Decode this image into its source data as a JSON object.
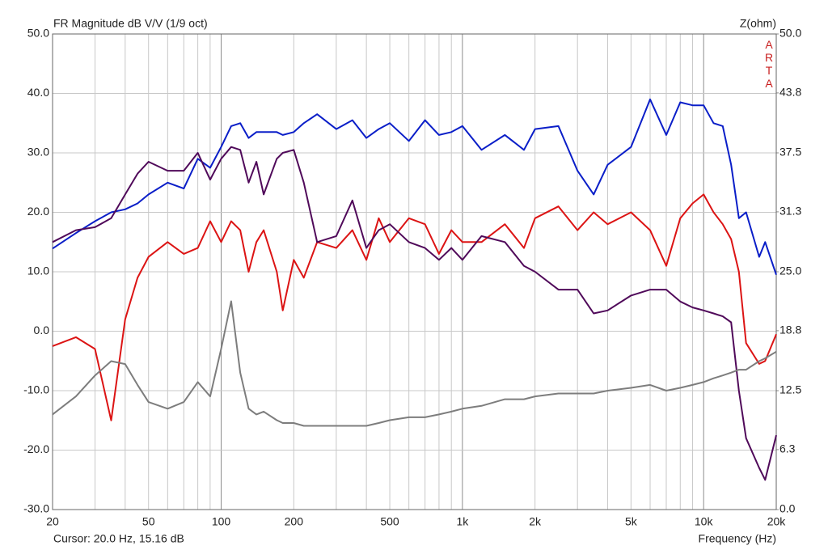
{
  "chart_data": {
    "type": "line",
    "title": "FR Magnitude dB V/V (1/9 oct)",
    "y2_label": "Z(ohm)",
    "brand": "ARTA",
    "cursor": "Cursor: 20.0 Hz, 15.16 dB",
    "x_label": "Frequency (Hz)",
    "x_log": true,
    "grid": true,
    "xlim": [
      20,
      20000
    ],
    "xticks": [
      20,
      50,
      100,
      200,
      500,
      {
        "value": 1000,
        "label": "1k"
      },
      {
        "value": 2000,
        "label": "2k"
      },
      {
        "value": 5000,
        "label": "5k"
      },
      {
        "value": 10000,
        "label": "10k"
      },
      {
        "value": 20000,
        "label": "20k"
      }
    ],
    "xgrid": [
      30,
      40,
      60,
      70,
      80,
      90,
      300,
      400,
      600,
      700,
      800,
      900,
      3000,
      4000,
      6000,
      7000,
      8000,
      9000
    ],
    "ylim": [
      -30,
      50
    ],
    "yticks": [
      {
        "value": 50,
        "label": "50.0"
      },
      {
        "value": 40,
        "label": "40.0"
      },
      {
        "value": 30,
        "label": "30.0"
      },
      {
        "value": 20,
        "label": "20.0"
      },
      {
        "value": 10,
        "label": "10.0"
      },
      {
        "value": 0,
        "label": "0.0"
      },
      {
        "value": -10,
        "label": "-10.0"
      },
      {
        "value": -20,
        "label": "-20.0"
      },
      {
        "value": -30,
        "label": "-30.0"
      }
    ],
    "y2lim": [
      0,
      50
    ],
    "y2ticks": [
      {
        "value": 50,
        "label": "50.0"
      },
      {
        "value": 43.8,
        "label": "43.8"
      },
      {
        "value": 37.5,
        "label": "37.5"
      },
      {
        "value": 31.3,
        "label": "31.3"
      },
      {
        "value": 25,
        "label": "25.0"
      },
      {
        "value": 18.8,
        "label": "18.8"
      },
      {
        "value": 12.5,
        "label": "12.5"
      },
      {
        "value": 6.3,
        "label": "6.3"
      },
      {
        "value": 0,
        "label": "0.0"
      }
    ],
    "x": [
      20,
      25,
      30,
      35,
      40,
      45,
      50,
      60,
      70,
      80,
      90,
      100,
      110,
      120,
      130,
      140,
      150,
      170,
      180,
      200,
      220,
      250,
      300,
      350,
      400,
      450,
      500,
      600,
      700,
      800,
      900,
      1000,
      1200,
      1500,
      1800,
      2000,
      2500,
      3000,
      3500,
      4000,
      5000,
      6000,
      7000,
      8000,
      9000,
      10000,
      11000,
      12000,
      13000,
      14000,
      15000,
      17000,
      18000,
      20000
    ],
    "series": [
      {
        "color": "#0a1ec8",
        "values": [
          13.9,
          16.5,
          18.5,
          20,
          20.5,
          21.5,
          23,
          25,
          24,
          29,
          27.5,
          31,
          34.5,
          35,
          32.5,
          33.5,
          33.5,
          33.5,
          33,
          33.5,
          35,
          36.5,
          34,
          35.5,
          32.5,
          34,
          35,
          32,
          35.5,
          33,
          33.5,
          34.5,
          30.5,
          33,
          30.5,
          34,
          34.5,
          27,
          23,
          28,
          31,
          39,
          33,
          38.5,
          38,
          38,
          35,
          34.5,
          28,
          19,
          20,
          12.5,
          15,
          9.5
        ]
      },
      {
        "color": "#dc1414",
        "values": [
          -2.5,
          -1,
          -3,
          -15,
          2,
          9,
          12.5,
          15,
          13,
          14,
          18.5,
          15,
          18.5,
          17,
          10,
          15,
          17,
          10,
          3.5,
          12,
          9,
          15,
          14,
          17,
          12,
          19,
          15,
          19,
          18,
          13,
          17,
          15,
          15,
          18,
          14,
          19,
          21,
          17,
          20,
          18,
          20,
          17,
          11,
          19,
          21.5,
          23,
          20,
          18,
          15.5,
          10,
          -2,
          -5.5,
          -5,
          -0.5
        ]
      },
      {
        "color": "#500a5a",
        "values": [
          15,
          17,
          17.5,
          19,
          23,
          26.5,
          28.5,
          27,
          27,
          30,
          25.5,
          29,
          31,
          30.5,
          25,
          28.5,
          23,
          29,
          30,
          30.5,
          25,
          15,
          16,
          22,
          14,
          17,
          18,
          15,
          14,
          12,
          14,
          12,
          16,
          15,
          11,
          10,
          7,
          7,
          3,
          3.5,
          6,
          7,
          7,
          5,
          4,
          3.5,
          3,
          2.5,
          1.5,
          -10,
          -18,
          -23,
          -25,
          -17.5
        ]
      },
      {
        "color": "#7d7d7d",
        "axis": "y2",
        "values": [
          10.0,
          11.9,
          14.1,
          15.6,
          15.3,
          13.1,
          11.3,
          10.6,
          11.3,
          13.4,
          11.9,
          16.9,
          21.9,
          14.4,
          10.6,
          10.0,
          10.3,
          9.4,
          9.1,
          9.1,
          8.8,
          8.8,
          8.8,
          8.8,
          8.8,
          9.1,
          9.4,
          9.7,
          9.7,
          10.0,
          10.3,
          10.6,
          10.9,
          11.6,
          11.6,
          11.9,
          12.2,
          12.2,
          12.2,
          12.5,
          12.8,
          13.1,
          12.5,
          12.8,
          13.1,
          13.4,
          13.8,
          14.1,
          14.4,
          14.7,
          14.7,
          15.6,
          15.9,
          16.6
        ]
      }
    ]
  }
}
